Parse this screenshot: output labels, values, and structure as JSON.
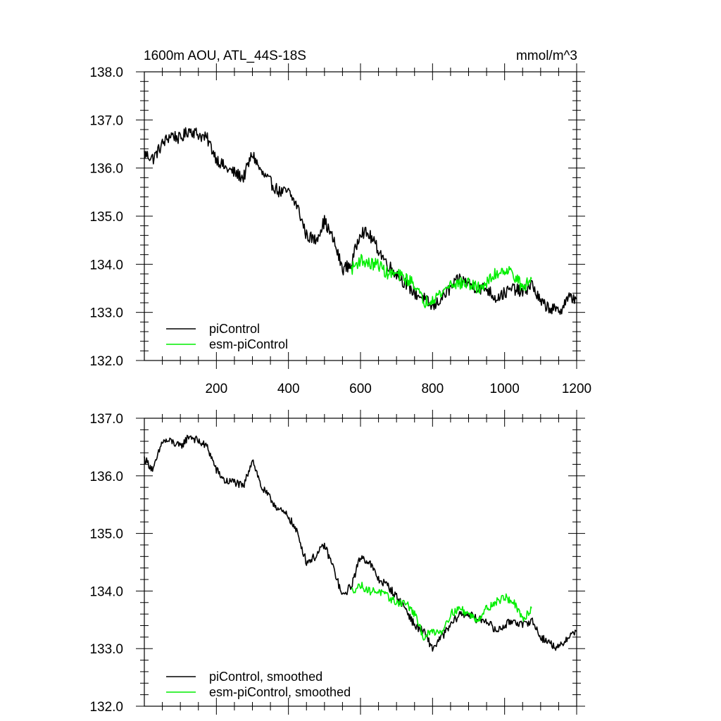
{
  "figure_title": "1600m AOU, ATL_44S-18S",
  "units": "mmol/m^3",
  "chart_data": [
    {
      "type": "line",
      "title": "1600m AOU, ATL_44S-18S",
      "units": "mmol/m^3",
      "xlim": [
        0,
        1200
      ],
      "ylim": [
        132.0,
        138.0
      ],
      "x_ticks": [
        200,
        400,
        600,
        800,
        1000,
        1200
      ],
      "x_tick_labels": [
        "200",
        "400",
        "600",
        "800",
        "1000",
        "1200"
      ],
      "y_ticks": [
        132.0,
        133.0,
        134.0,
        135.0,
        136.0,
        137.0,
        138.0
      ],
      "y_tick_labels": [
        "132.0",
        "133.0",
        "134.0",
        "135.0",
        "136.0",
        "137.0",
        "138.0"
      ],
      "grid": false,
      "legend_position": "bottom-left",
      "series": [
        {
          "name": "piControl",
          "color": "#000000",
          "x": [
            0,
            25,
            50,
            75,
            100,
            125,
            150,
            175,
            200,
            225,
            250,
            275,
            300,
            325,
            350,
            375,
            400,
            425,
            450,
            475,
            500,
            525,
            550,
            575,
            600,
            625,
            650,
            675,
            700,
            725,
            750,
            775,
            800,
            825,
            850,
            875,
            900,
            925,
            950,
            975,
            1000,
            1025,
            1050,
            1075,
            1100,
            1125,
            1150,
            1175,
            1200
          ],
          "y": [
            136.3,
            136.2,
            136.5,
            136.7,
            136.6,
            136.8,
            136.7,
            136.6,
            136.2,
            136.0,
            135.9,
            135.8,
            136.3,
            135.9,
            135.7,
            135.5,
            135.5,
            135.2,
            134.6,
            134.5,
            134.9,
            134.5,
            133.9,
            134.0,
            134.7,
            134.6,
            134.3,
            134.0,
            133.8,
            133.6,
            133.4,
            133.3,
            133.1,
            133.3,
            133.5,
            133.7,
            133.6,
            133.5,
            133.5,
            133.3,
            133.4,
            133.5,
            133.4,
            133.6,
            133.2,
            133.1,
            133.0,
            133.3,
            133.3
          ]
        },
        {
          "name": "esm-piControl",
          "color": "#00ee00",
          "x": [
            575,
            600,
            625,
            650,
            675,
            700,
            725,
            750,
            775,
            800,
            825,
            850,
            875,
            900,
            925,
            950,
            975,
            1000,
            1025,
            1050,
            1075
          ],
          "y": [
            133.9,
            134.1,
            134.0,
            134.0,
            133.8,
            133.8,
            133.7,
            133.6,
            133.2,
            133.3,
            133.4,
            133.6,
            133.6,
            133.6,
            133.5,
            133.6,
            133.8,
            133.9,
            133.8,
            133.5,
            133.7
          ]
        }
      ]
    },
    {
      "type": "line",
      "xlim": [
        0,
        1200
      ],
      "ylim": [
        132.0,
        137.0
      ],
      "y_ticks": [
        132.0,
        133.0,
        134.0,
        135.0,
        136.0,
        137.0
      ],
      "y_tick_labels": [
        "132.0",
        "133.0",
        "134.0",
        "135.0",
        "136.0",
        "137.0"
      ],
      "grid": false,
      "legend_position": "bottom-left",
      "series": [
        {
          "name": "piControl, smoothed",
          "color": "#000000",
          "x": [
            0,
            25,
            50,
            75,
            100,
            125,
            150,
            175,
            200,
            225,
            250,
            275,
            300,
            325,
            350,
            375,
            400,
            425,
            450,
            475,
            500,
            525,
            550,
            575,
            600,
            625,
            650,
            675,
            700,
            725,
            750,
            775,
            800,
            825,
            850,
            875,
            900,
            925,
            950,
            975,
            1000,
            1025,
            1050,
            1075,
            1100,
            1125,
            1150,
            1175,
            1200
          ],
          "y": [
            136.3,
            136.1,
            136.6,
            136.6,
            136.5,
            136.7,
            136.6,
            136.5,
            136.1,
            135.9,
            135.9,
            135.8,
            136.3,
            135.8,
            135.6,
            135.4,
            135.3,
            135.0,
            134.5,
            134.6,
            134.8,
            134.4,
            133.9,
            134.1,
            134.6,
            134.5,
            134.2,
            134.1,
            133.9,
            133.7,
            133.4,
            133.3,
            133.0,
            133.2,
            133.4,
            133.6,
            133.6,
            133.5,
            133.5,
            133.3,
            133.4,
            133.5,
            133.4,
            133.5,
            133.2,
            133.1,
            133.0,
            133.2,
            133.3
          ]
        },
        {
          "name": "esm-piControl, smoothed",
          "color": "#00ee00",
          "x": [
            575,
            600,
            625,
            650,
            675,
            700,
            725,
            750,
            775,
            800,
            825,
            850,
            875,
            900,
            925,
            950,
            975,
            1000,
            1025,
            1050,
            1075
          ],
          "y": [
            134.0,
            134.1,
            134.0,
            134.0,
            133.9,
            133.8,
            133.8,
            133.6,
            133.2,
            133.3,
            133.3,
            133.6,
            133.7,
            133.6,
            133.5,
            133.7,
            133.8,
            133.9,
            133.8,
            133.5,
            133.7
          ]
        }
      ]
    }
  ]
}
